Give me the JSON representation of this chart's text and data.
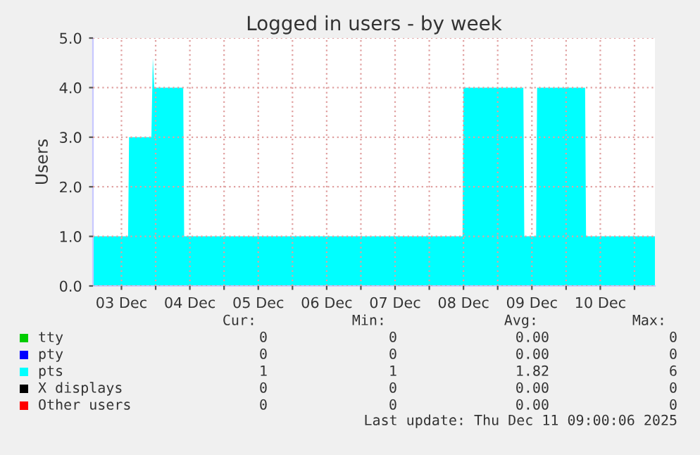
{
  "chart_data": {
    "type": "area",
    "title": "Logged in users - by week",
    "ylabel": "Users",
    "x": [
      "2025-12-03T02:00",
      "2025-12-03T14:20",
      "2025-12-03T14:40",
      "2025-12-03T22:30",
      "2025-12-03T23:00",
      "2025-12-03T23:30",
      "2025-12-04T09:40",
      "2025-12-04T10:00",
      "2025-12-08T11:40",
      "2025-12-08T12:00",
      "2025-12-09T09:00",
      "2025-12-09T09:20",
      "2025-12-09T13:30",
      "2025-12-09T13:50",
      "2025-12-10T06:40",
      "2025-12-10T07:00",
      "2025-12-11T07:10"
    ],
    "series": [
      {
        "name": "tty",
        "color": "#00cc00",
        "values": [
          null,
          null,
          null,
          null,
          null,
          null,
          null,
          null,
          null,
          null,
          null,
          null,
          null,
          null,
          null,
          null,
          null
        ]
      },
      {
        "name": "pty",
        "color": "#0000ff",
        "values": [
          null,
          null,
          null,
          null,
          null,
          null,
          null,
          null,
          null,
          null,
          null,
          null,
          null,
          null,
          null,
          null,
          null
        ]
      },
      {
        "name": "pts",
        "color": "#00ffff",
        "values": [
          1,
          1,
          3,
          3,
          4.6,
          4,
          4,
          1,
          1,
          4,
          4,
          1,
          1,
          4,
          4,
          1,
          1
        ]
      },
      {
        "name": "X displays",
        "color": "#000000",
        "values": [
          null,
          null,
          null,
          null,
          null,
          null,
          null,
          null,
          null,
          null,
          null,
          null,
          null,
          null,
          null,
          null,
          null
        ]
      },
      {
        "name": "Other users",
        "color": "#ff0000",
        "values": [
          null,
          null,
          null,
          null,
          null,
          null,
          null,
          null,
          null,
          null,
          null,
          null,
          null,
          null,
          null,
          null,
          null
        ]
      }
    ],
    "xlim": [
      "2025-12-03T02:00",
      "2025-12-11T07:10"
    ],
    "xticks": [
      {
        "value": "2025-12-03T12:00",
        "label": "03 Dec"
      },
      {
        "value": "2025-12-04T00:00",
        "label": null
      },
      {
        "value": "2025-12-04T12:00",
        "label": "04 Dec"
      },
      {
        "value": "2025-12-05T00:00",
        "label": null
      },
      {
        "value": "2025-12-05T12:00",
        "label": "05 Dec"
      },
      {
        "value": "2025-12-06T00:00",
        "label": null
      },
      {
        "value": "2025-12-06T12:00",
        "label": "06 Dec"
      },
      {
        "value": "2025-12-07T00:00",
        "label": null
      },
      {
        "value": "2025-12-07T12:00",
        "label": "07 Dec"
      },
      {
        "value": "2025-12-08T00:00",
        "label": null
      },
      {
        "value": "2025-12-08T12:00",
        "label": "08 Dec"
      },
      {
        "value": "2025-12-09T00:00",
        "label": null
      },
      {
        "value": "2025-12-09T12:00",
        "label": "09 Dec"
      },
      {
        "value": "2025-12-10T00:00",
        "label": null
      },
      {
        "value": "2025-12-10T12:00",
        "label": "10 Dec"
      },
      {
        "value": "2025-12-11T00:00",
        "label": null
      }
    ],
    "ylim": [
      0,
      5
    ],
    "yticks": [
      {
        "value": 0,
        "label": "0.0"
      },
      {
        "value": 1,
        "label": "1.0"
      },
      {
        "value": 2,
        "label": "2.0"
      },
      {
        "value": 3,
        "label": "3.0"
      },
      {
        "value": 4,
        "label": "4.0"
      },
      {
        "value": 5,
        "label": "5.0"
      }
    ],
    "grid": true,
    "legend": "bottom",
    "annotations": [
      "Cur:",
      "Min:",
      "Avg:",
      "Max:",
      "0",
      "0",
      "0.00",
      "0",
      "0",
      "0",
      "0.00",
      "0",
      "1",
      "1",
      "1.82",
      "6",
      "0",
      "0",
      "0.00",
      "0",
      "0",
      "0",
      "0.00",
      "0",
      "Last update: Thu Dec 11 09:00:06 2025"
    ]
  }
}
